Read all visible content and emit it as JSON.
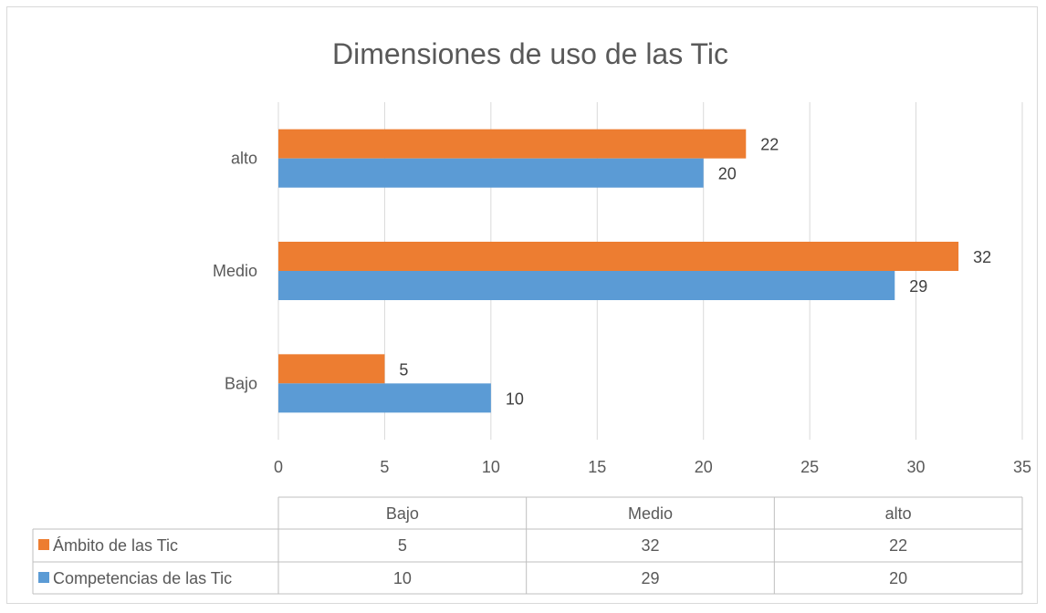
{
  "chart_data": {
    "type": "bar",
    "orientation": "horizontal",
    "title": "Dimensiones de uso de las Tic",
    "categories": [
      "Bajo",
      "Medio",
      "alto"
    ],
    "series": [
      {
        "name": "Ámbito de las Tic",
        "values": [
          5,
          32,
          22
        ],
        "color": "#ED7D31"
      },
      {
        "name": "Competencias de las Tic",
        "values": [
          10,
          29,
          20
        ],
        "color": "#5B9BD5"
      }
    ],
    "xlim": [
      0,
      35
    ],
    "xticks": [
      0,
      5,
      10,
      15,
      20,
      25,
      30,
      35
    ],
    "grid": true,
    "legend": "data-table",
    "data_labels": true
  }
}
